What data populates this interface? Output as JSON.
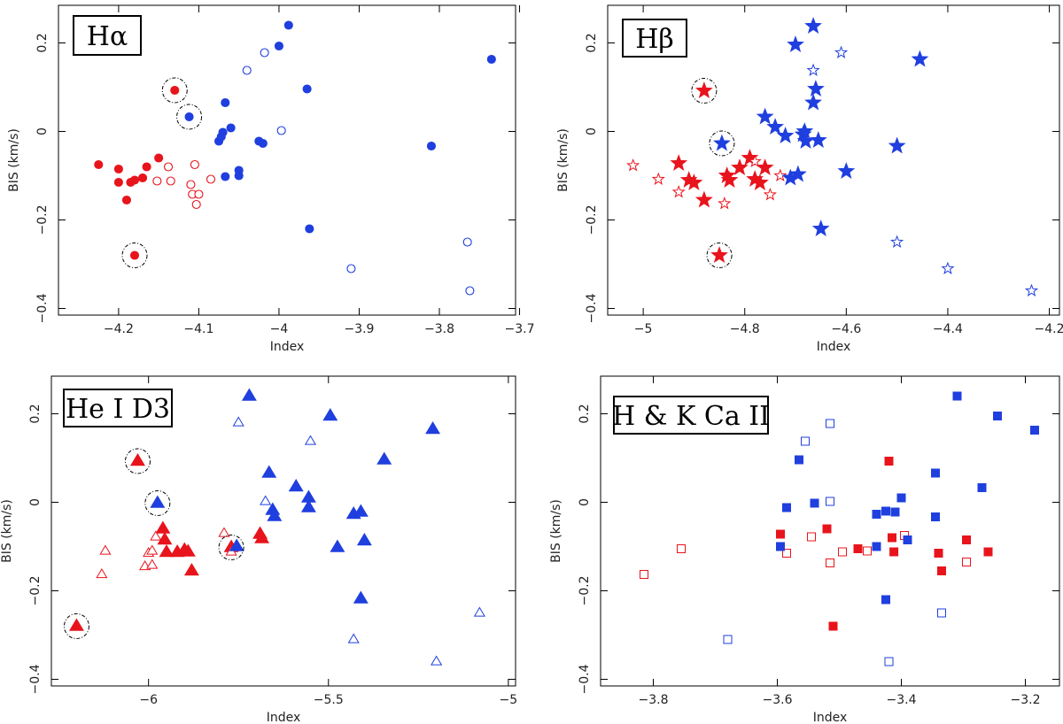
{
  "colors": {
    "active": "#e8141c",
    "quiet": "#1f3fdf",
    "axis": "#000000"
  },
  "chart_data": [
    {
      "type": "scatter",
      "title": "Hα",
      "marker": "circle",
      "xlabel": "Index",
      "ylabel": "BIS (km/s)",
      "xlim": [
        -4.275,
        -3.705
      ],
      "ylim": [
        -0.415,
        0.285
      ],
      "xticks": [
        -4.2,
        -4.1,
        -4,
        -3.9,
        -3.8,
        -3.7
      ],
      "xtick_labels": [
        "−4.2",
        "−4.1",
        "−4",
        "−3.9",
        "−3.8",
        "−3.7"
      ],
      "yticks": [
        -0.4,
        -0.2,
        0,
        0.2
      ],
      "ytick_labels": [
        "−0.4",
        "−0.2",
        "0",
        "0.2"
      ],
      "series": [
        {
          "name": "red-filled",
          "color": "red",
          "filled": true,
          "points": [
            [
              -4.225,
              -0.075
            ],
            [
              -4.2,
              -0.085
            ],
            [
              -4.2,
              -0.115
            ],
            [
              -4.19,
              -0.155
            ],
            [
              -4.185,
              -0.115
            ],
            [
              -4.18,
              -0.11
            ],
            [
              -4.17,
              -0.105
            ],
            [
              -4.165,
              -0.08
            ],
            [
              -4.15,
              -0.06
            ],
            [
              -4.18,
              -0.28
            ],
            [
              -4.13,
              0.093
            ]
          ]
        },
        {
          "name": "red-open",
          "color": "red",
          "filled": false,
          "points": [
            [
              -4.152,
              -0.112
            ],
            [
              -4.138,
              -0.08
            ],
            [
              -4.135,
              -0.112
            ],
            [
              -4.11,
              -0.12
            ],
            [
              -4.108,
              -0.142
            ],
            [
              -4.105,
              -0.075
            ],
            [
              -4.103,
              -0.165
            ],
            [
              -4.1,
              -0.142
            ],
            [
              -4.085,
              -0.108
            ]
          ]
        },
        {
          "name": "blue-filled",
          "color": "blue",
          "filled": true,
          "points": [
            [
              -4.112,
              0.033
            ],
            [
              -4.075,
              -0.022
            ],
            [
              -4.072,
              -0.012
            ],
            [
              -4.07,
              -0.002
            ],
            [
              -4.067,
              0.065
            ],
            [
              -4.067,
              -0.102
            ],
            [
              -4.06,
              0.008
            ],
            [
              -4.05,
              -0.088
            ],
            [
              -4.05,
              -0.1
            ],
            [
              -4.025,
              -0.022
            ],
            [
              -4.02,
              -0.027
            ],
            [
              -4.0,
              0.193
            ],
            [
              -3.988,
              0.24
            ],
            [
              -3.965,
              0.096
            ],
            [
              -3.962,
              -0.22
            ],
            [
              -3.81,
              -0.033
            ],
            [
              -3.735,
              0.163
            ]
          ]
        },
        {
          "name": "blue-open",
          "color": "blue",
          "filled": false,
          "points": [
            [
              -4.04,
              0.138
            ],
            [
              -4.018,
              0.178
            ],
            [
              -3.997,
              0.002
            ],
            [
              -3.91,
              -0.31
            ],
            [
              -3.765,
              -0.25
            ],
            [
              -3.762,
              -0.36
            ]
          ]
        }
      ],
      "circled": [
        [
          -4.13,
          0.093
        ],
        [
          -4.112,
          0.033
        ],
        [
          -4.18,
          -0.28
        ]
      ]
    },
    {
      "type": "scatter",
      "title": "Hβ",
      "marker": "star",
      "xlabel": "Index",
      "ylabel": "BIS (km/s)",
      "xlim": [
        -5.07,
        -4.18
      ],
      "ylim": [
        -0.415,
        0.285
      ],
      "xticks": [
        -5,
        -4.8,
        -4.6,
        -4.4,
        -4.2
      ],
      "xtick_labels": [
        "−5",
        "−4.8",
        "−4.6",
        "−4.4",
        "−4.2"
      ],
      "yticks": [
        -0.4,
        -0.2,
        0,
        0.2
      ],
      "ytick_labels": [
        "−0.4",
        "−0.2",
        "0",
        "0.2"
      ],
      "series": [
        {
          "name": "red-filled",
          "color": "red",
          "filled": true,
          "points": [
            [
              -4.93,
              -0.072
            ],
            [
              -4.91,
              -0.11
            ],
            [
              -4.9,
              -0.116
            ],
            [
              -4.88,
              -0.155
            ],
            [
              -4.88,
              0.092
            ],
            [
              -4.85,
              -0.28
            ],
            [
              -4.835,
              -0.1
            ],
            [
              -4.83,
              -0.11
            ],
            [
              -4.81,
              -0.082
            ],
            [
              -4.79,
              -0.06
            ],
            [
              -4.78,
              -0.108
            ],
            [
              -4.77,
              -0.116
            ],
            [
              -4.76,
              -0.082
            ]
          ]
        },
        {
          "name": "red-open",
          "color": "red",
          "filled": false,
          "points": [
            [
              -5.02,
              -0.077
            ],
            [
              -4.97,
              -0.108
            ],
            [
              -4.93,
              -0.137
            ],
            [
              -4.84,
              -0.163
            ],
            [
              -4.78,
              -0.068
            ],
            [
              -4.75,
              -0.143
            ],
            [
              -4.73,
              -0.1
            ]
          ]
        },
        {
          "name": "blue-filled",
          "color": "blue",
          "filled": true,
          "points": [
            [
              -4.845,
              -0.027
            ],
            [
              -4.76,
              0.033
            ],
            [
              -4.74,
              0.01
            ],
            [
              -4.72,
              -0.01
            ],
            [
              -4.71,
              -0.105
            ],
            [
              -4.695,
              -0.097
            ],
            [
              -4.7,
              0.196
            ],
            [
              -4.685,
              -0.007
            ],
            [
              -4.682,
              0.0
            ],
            [
              -4.68,
              -0.022
            ],
            [
              -4.665,
              0.065
            ],
            [
              -4.665,
              0.238
            ],
            [
              -4.66,
              0.096
            ],
            [
              -4.655,
              -0.02
            ],
            [
              -4.65,
              -0.22
            ],
            [
              -4.6,
              -0.09
            ],
            [
              -4.5,
              -0.033
            ],
            [
              -4.455,
              0.163
            ]
          ]
        },
        {
          "name": "blue-open",
          "color": "blue",
          "filled": false,
          "points": [
            [
              -4.665,
              0.138
            ],
            [
              -4.61,
              0.178
            ],
            [
              -4.5,
              -0.25
            ],
            [
              -4.4,
              -0.31
            ],
            [
              -4.235,
              -0.36
            ]
          ]
        }
      ],
      "circled": [
        [
          -4.88,
          0.092
        ],
        [
          -4.845,
          -0.027
        ],
        [
          -4.85,
          -0.28
        ]
      ]
    },
    {
      "type": "scatter",
      "title": "He I D3",
      "marker": "triangle",
      "xlabel": "Index",
      "ylabel": "BIS (km/s)",
      "xlim": [
        -6.27,
        -4.98
      ],
      "ylim": [
        -0.415,
        0.285
      ],
      "xticks": [
        -6,
        -5.5,
        -5
      ],
      "xtick_labels": [
        "−6",
        "−5.5",
        "−5"
      ],
      "yticks": [
        -0.4,
        -0.2,
        0,
        0.2
      ],
      "ytick_labels": [
        "−0.4",
        "−0.2",
        "0",
        "0.2"
      ],
      "series": [
        {
          "name": "red-filled",
          "color": "red",
          "filled": true,
          "points": [
            [
              -6.2,
              -0.28
            ],
            [
              -6.03,
              0.093
            ],
            [
              -5.96,
              -0.06
            ],
            [
              -5.955,
              -0.085
            ],
            [
              -5.95,
              -0.113
            ],
            [
              -5.92,
              -0.113
            ],
            [
              -5.9,
              -0.108
            ],
            [
              -5.89,
              -0.112
            ],
            [
              -5.88,
              -0.155
            ],
            [
              -5.77,
              -0.102
            ],
            [
              -5.69,
              -0.072
            ],
            [
              -5.685,
              -0.082
            ]
          ]
        },
        {
          "name": "red-open",
          "color": "red",
          "filled": false,
          "points": [
            [
              -6.12,
              -0.11
            ],
            [
              -6.13,
              -0.163
            ],
            [
              -6.01,
              -0.145
            ],
            [
              -6.0,
              -0.115
            ],
            [
              -5.99,
              -0.142
            ],
            [
              -5.99,
              -0.11
            ],
            [
              -5.98,
              -0.078
            ],
            [
              -5.79,
              -0.07
            ],
            [
              -5.77,
              -0.112
            ]
          ]
        },
        {
          "name": "blue-filled",
          "color": "blue",
          "filled": true,
          "points": [
            [
              -5.975,
              -0.002
            ],
            [
              -5.755,
              -0.1
            ],
            [
              -5.72,
              0.24
            ],
            [
              -5.665,
              0.066
            ],
            [
              -5.655,
              -0.018
            ],
            [
              -5.65,
              -0.032
            ],
            [
              -5.59,
              0.035
            ],
            [
              -5.555,
              -0.012
            ],
            [
              -5.555,
              0.01
            ],
            [
              -5.495,
              0.195
            ],
            [
              -5.475,
              -0.102
            ],
            [
              -5.43,
              -0.027
            ],
            [
              -5.41,
              -0.022
            ],
            [
              -5.41,
              -0.218
            ],
            [
              -5.4,
              -0.087
            ],
            [
              -5.345,
              0.096
            ],
            [
              -5.21,
              0.165
            ]
          ]
        },
        {
          "name": "blue-open",
          "color": "blue",
          "filled": false,
          "points": [
            [
              -5.75,
              0.18
            ],
            [
              -5.675,
              0.002
            ],
            [
              -5.55,
              0.138
            ],
            [
              -5.43,
              -0.31
            ],
            [
              -5.2,
              -0.36
            ],
            [
              -5.08,
              -0.25
            ]
          ]
        }
      ],
      "circled": [
        [
          -6.03,
          0.093
        ],
        [
          -5.975,
          -0.002
        ],
        [
          -6.2,
          -0.28
        ],
        [
          -5.77,
          -0.102
        ]
      ]
    },
    {
      "type": "scatter",
      "title": "H & K Ca II",
      "marker": "square",
      "xlabel": "Index",
      "ylabel": "BIS (km/s)",
      "xlim": [
        -3.885,
        -3.145
      ],
      "ylim": [
        -0.415,
        0.285
      ],
      "xticks": [
        -3.8,
        -3.6,
        -3.4,
        -3.2
      ],
      "xtick_labels": [
        "−3.8",
        "−3.6",
        "−3.4",
        "−3.2"
      ],
      "yticks": [
        -0.4,
        -0.2,
        0,
        0.2
      ],
      "ytick_labels": [
        "−0.4",
        "−0.2",
        "0",
        "0.2"
      ],
      "series": [
        {
          "name": "red-filled",
          "color": "red",
          "filled": true,
          "points": [
            [
              -3.595,
              -0.072
            ],
            [
              -3.52,
              -0.06
            ],
            [
              -3.51,
              -0.28
            ],
            [
              -3.47,
              -0.105
            ],
            [
              -3.42,
              0.093
            ],
            [
              -3.415,
              -0.08
            ],
            [
              -3.412,
              -0.112
            ],
            [
              -3.34,
              -0.115
            ],
            [
              -3.335,
              -0.155
            ],
            [
              -3.295,
              -0.085
            ],
            [
              -3.26,
              -0.112
            ]
          ]
        },
        {
          "name": "red-open",
          "color": "red",
          "filled": false,
          "points": [
            [
              -3.815,
              -0.163
            ],
            [
              -3.755,
              -0.105
            ],
            [
              -3.585,
              -0.115
            ],
            [
              -3.545,
              -0.078
            ],
            [
              -3.495,
              -0.112
            ],
            [
              -3.515,
              -0.137
            ],
            [
              -3.455,
              -0.11
            ],
            [
              -3.395,
              -0.075
            ],
            [
              -3.295,
              -0.135
            ]
          ]
        },
        {
          "name": "blue-filled",
          "color": "blue",
          "filled": true,
          "points": [
            [
              -3.595,
              -0.1
            ],
            [
              -3.585,
              -0.012
            ],
            [
              -3.565,
              0.096
            ],
            [
              -3.54,
              -0.002
            ],
            [
              -3.44,
              -0.1
            ],
            [
              -3.44,
              -0.027
            ],
            [
              -3.425,
              -0.22
            ],
            [
              -3.425,
              -0.02
            ],
            [
              -3.41,
              -0.022
            ],
            [
              -3.4,
              0.01
            ],
            [
              -3.39,
              -0.085
            ],
            [
              -3.345,
              0.066
            ],
            [
              -3.345,
              -0.033
            ],
            [
              -3.31,
              0.24
            ],
            [
              -3.27,
              0.033
            ],
            [
              -3.245,
              0.195
            ],
            [
              -3.185,
              0.163
            ]
          ]
        },
        {
          "name": "blue-open",
          "color": "blue",
          "filled": false,
          "points": [
            [
              -3.68,
              -0.31
            ],
            [
              -3.555,
              0.138
            ],
            [
              -3.515,
              0.178
            ],
            [
              -3.515,
              0.002
            ],
            [
              -3.42,
              -0.36
            ],
            [
              -3.335,
              -0.25
            ]
          ]
        }
      ],
      "circled": []
    }
  ]
}
